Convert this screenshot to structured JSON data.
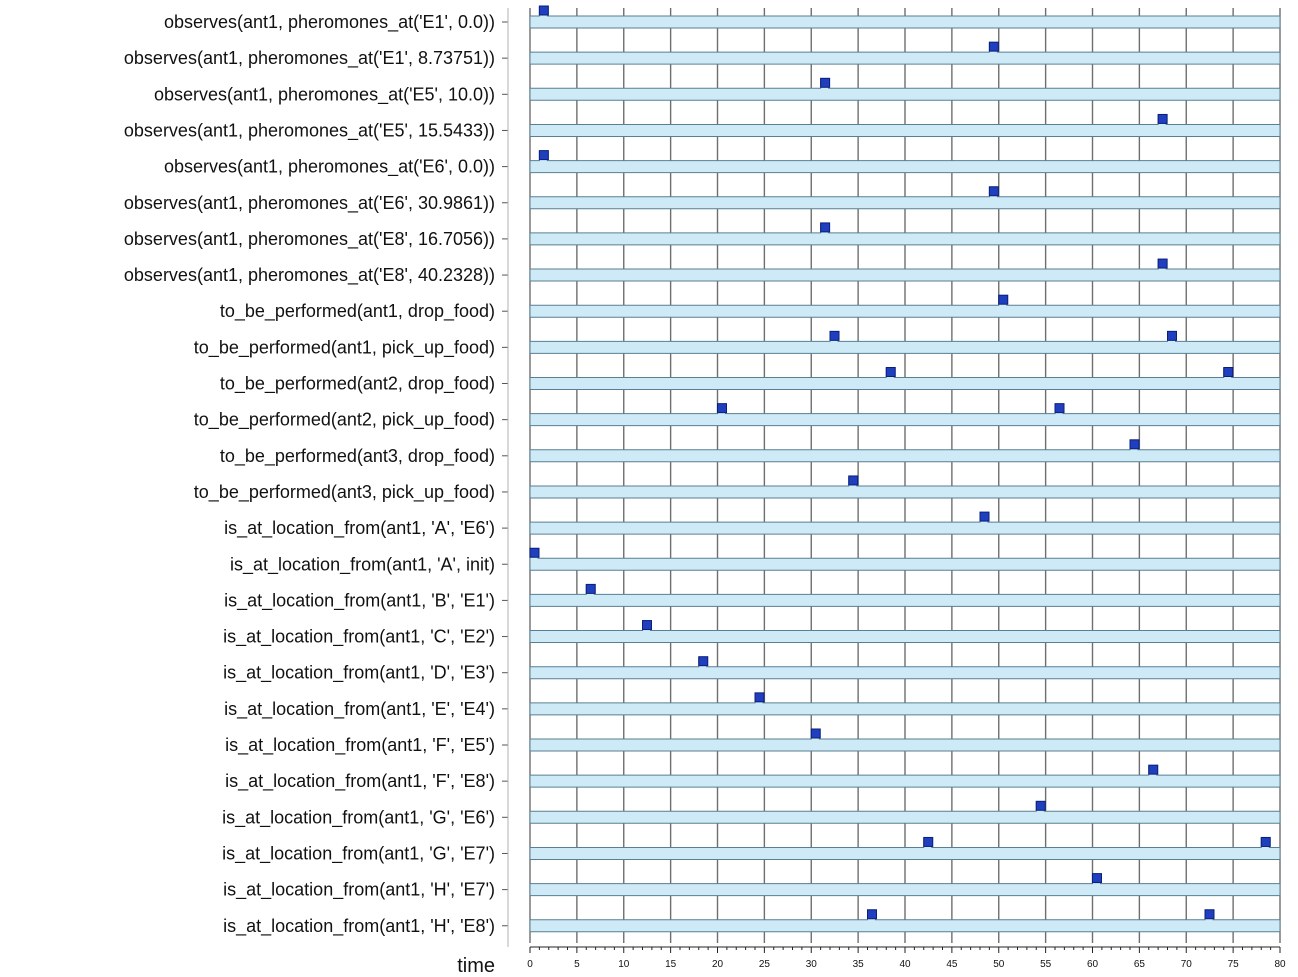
{
  "chart_data": {
    "type": "timeline",
    "xlabel": "time",
    "xlim": [
      0,
      80
    ],
    "xticks": [
      0,
      5,
      10,
      15,
      20,
      25,
      30,
      35,
      40,
      45,
      50,
      55,
      60,
      65,
      70,
      75,
      80
    ],
    "grid": true,
    "colors": {
      "bar_fill": "#cdeaf6",
      "bar_stroke": "#5a7f93",
      "marker_fill": "#1f3fbf",
      "marker_stroke": "#0b1f77",
      "gridline": "#6e6e6e",
      "axis": "#222222"
    },
    "rows": [
      {
        "label": "observes(ant1, pheromones_at('E1', 0.0))",
        "events": [
          1
        ]
      },
      {
        "label": "observes(ant1, pheromones_at('E1', 8.73751))",
        "events": [
          49
        ]
      },
      {
        "label": "observes(ant1, pheromones_at('E5', 10.0))",
        "events": [
          31
        ]
      },
      {
        "label": "observes(ant1, pheromones_at('E5', 15.5433))",
        "events": [
          67
        ]
      },
      {
        "label": "observes(ant1, pheromones_at('E6', 0.0))",
        "events": [
          1
        ]
      },
      {
        "label": "observes(ant1, pheromones_at('E6', 30.9861))",
        "events": [
          49
        ]
      },
      {
        "label": "observes(ant1, pheromones_at('E8', 16.7056))",
        "events": [
          31
        ]
      },
      {
        "label": "observes(ant1, pheromones_at('E8', 40.2328))",
        "events": [
          67
        ]
      },
      {
        "label": "to_be_performed(ant1, drop_food)",
        "events": [
          50
        ]
      },
      {
        "label": "to_be_performed(ant1, pick_up_food)",
        "events": [
          32,
          68
        ]
      },
      {
        "label": "to_be_performed(ant2, drop_food)",
        "events": [
          38,
          74
        ]
      },
      {
        "label": "to_be_performed(ant2, pick_up_food)",
        "events": [
          20,
          56
        ]
      },
      {
        "label": "to_be_performed(ant3, drop_food)",
        "events": [
          64
        ]
      },
      {
        "label": "to_be_performed(ant3, pick_up_food)",
        "events": [
          34
        ]
      },
      {
        "label": "is_at_location_from(ant1, 'A', 'E6')",
        "events": [
          48
        ]
      },
      {
        "label": "is_at_location_from(ant1, 'A', init)",
        "events": [
          0
        ]
      },
      {
        "label": "is_at_location_from(ant1, 'B', 'E1')",
        "events": [
          6
        ]
      },
      {
        "label": "is_at_location_from(ant1, 'C', 'E2')",
        "events": [
          12
        ]
      },
      {
        "label": "is_at_location_from(ant1, 'D', 'E3')",
        "events": [
          18
        ]
      },
      {
        "label": "is_at_location_from(ant1, 'E', 'E4')",
        "events": [
          24
        ]
      },
      {
        "label": "is_at_location_from(ant1, 'F', 'E5')",
        "events": [
          30
        ]
      },
      {
        "label": "is_at_location_from(ant1, 'F', 'E8')",
        "events": [
          66
        ]
      },
      {
        "label": "is_at_location_from(ant1, 'G', 'E6')",
        "events": [
          54
        ]
      },
      {
        "label": "is_at_location_from(ant1, 'G', 'E7')",
        "events": [
          42,
          78
        ]
      },
      {
        "label": "is_at_location_from(ant1, 'H', 'E7')",
        "events": [
          60
        ]
      },
      {
        "label": "is_at_location_from(ant1, 'H', 'E8')",
        "events": [
          36,
          72
        ]
      }
    ]
  }
}
